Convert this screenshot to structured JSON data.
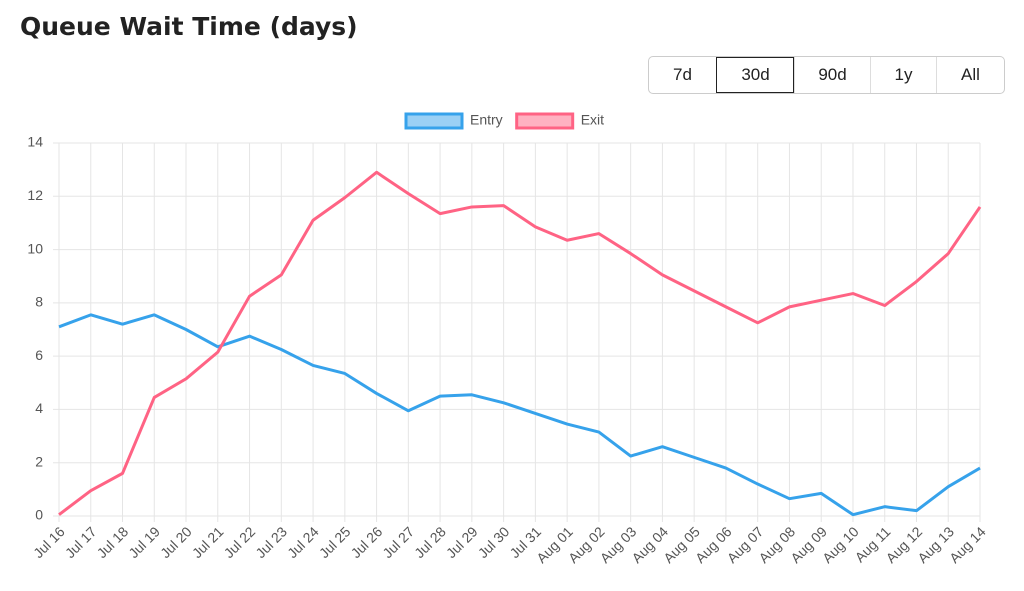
{
  "controls": {
    "ranges": [
      "7d",
      "30d",
      "90d",
      "1y",
      "All"
    ],
    "selected": "30d"
  },
  "chart_data": {
    "type": "line",
    "title": "Queue Wait Time (days)",
    "categories": [
      "Jul 16",
      "Jul 17",
      "Jul 18",
      "Jul 19",
      "Jul 20",
      "Jul 21",
      "Jul 22",
      "Jul 23",
      "Jul 24",
      "Jul 25",
      "Jul 26",
      "Jul 27",
      "Jul 28",
      "Jul 29",
      "Jul 30",
      "Jul 31",
      "Aug 01",
      "Aug 02",
      "Aug 03",
      "Aug 04",
      "Aug 05",
      "Aug 06",
      "Aug 07",
      "Aug 08",
      "Aug 09",
      "Aug 10",
      "Aug 11",
      "Aug 12",
      "Aug 13",
      "Aug 14"
    ],
    "series": [
      {
        "name": "Entry",
        "color": "#36a2eb",
        "values": [
          7.1,
          7.55,
          7.2,
          7.55,
          7.0,
          6.35,
          6.75,
          6.25,
          5.65,
          5.35,
          4.6,
          3.95,
          4.5,
          4.55,
          4.25,
          3.85,
          3.45,
          3.15,
          2.25,
          2.6,
          2.2,
          1.8,
          1.2,
          0.65,
          0.85,
          0.05,
          0.35,
          0.2,
          1.1,
          1.8
        ]
      },
      {
        "name": "Exit",
        "color": "#ff6384",
        "values": [
          0.05,
          0.95,
          1.6,
          4.45,
          5.15,
          6.15,
          8.25,
          9.05,
          11.1,
          11.95,
          12.9,
          12.1,
          11.35,
          11.6,
          11.65,
          10.85,
          10.35,
          10.6,
          9.85,
          9.05,
          8.45,
          7.85,
          7.25,
          7.85,
          8.1,
          8.35,
          7.9,
          8.8,
          9.85,
          11.6
        ]
      }
    ],
    "ylim": [
      0,
      14
    ],
    "yticks": [
      0,
      2,
      4,
      6,
      8,
      10,
      12,
      14
    ],
    "grid": true,
    "legend": "top"
  }
}
